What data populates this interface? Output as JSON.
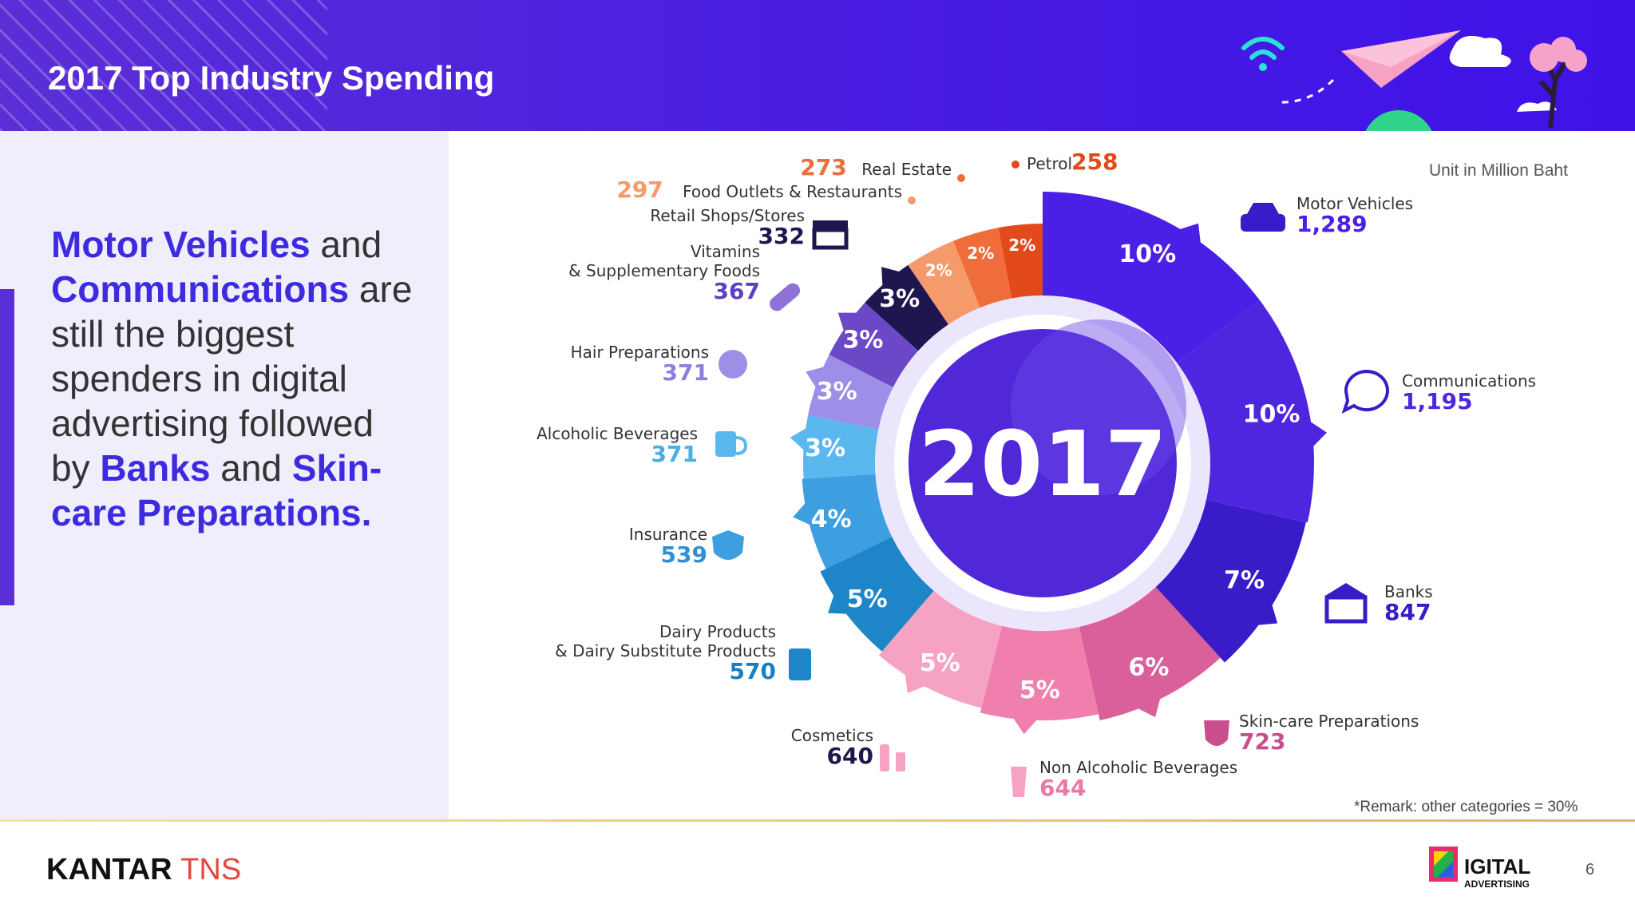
{
  "slide": {
    "title": "2017 Top Industry Spending",
    "page_number": "6"
  },
  "headline": {
    "part1": "Motor Vehicles",
    "part2": " and ",
    "part3": "Communications",
    "part4": " are still the  biggest spenders in digital advertising followed by ",
    "part5": "Banks",
    "part6": " and ",
    "part7": "Skin-care Preparations."
  },
  "notes": {
    "unit": "Unit in Million Baht",
    "remark": "*Remark: other categories = 30%"
  },
  "footer": {
    "brand_main": "KANTAR",
    "brand_accent": "TNS",
    "partner_main": "IGITAL",
    "partner_sub": "ADVERTISING"
  },
  "chart_data": {
    "type": "pie",
    "center_label": "2017",
    "categories": [
      "Motor Vehicles",
      "Communications",
      "Banks",
      "Skin-care Preparations",
      "Non Alcoholic Beverages",
      "Cosmetics",
      "Dairy Products\n& Dairy Substitute Products",
      "Insurance",
      "Alcoholic Beverages",
      "Hair Preparations",
      "Vitamins\n& Supplementary Foods",
      "Retail Shops/Stores",
      "Food Outlets & Restaurants",
      "Real Estate",
      "Petrol"
    ],
    "values": [
      1289,
      1195,
      847,
      723,
      644,
      640,
      570,
      539,
      371,
      371,
      367,
      332,
      297,
      273,
      258
    ],
    "percent_labels": [
      "10%",
      "10%",
      "7%",
      "6%",
      "5%",
      "5%",
      "5%",
      "4%",
      "3%",
      "3%",
      "3%",
      "3%",
      "2%",
      "2%",
      "2%"
    ],
    "value_labels": [
      "1,289",
      "1,195",
      "847",
      "723",
      "644",
      "640",
      "570",
      "539",
      "371",
      "371",
      "367",
      "332",
      "297",
      "273",
      "258"
    ],
    "colors": [
      "#4a1fe6",
      "#4f26e0",
      "#3a1bc8",
      "#d9609b",
      "#f07fad",
      "#f6a3c3",
      "#1e86c8",
      "#3d9fe0",
      "#5bb8ef",
      "#9d8ee8",
      "#6a48c8",
      "#1f1650",
      "#f59a6b",
      "#ef6d3a",
      "#e24a1c"
    ]
  }
}
